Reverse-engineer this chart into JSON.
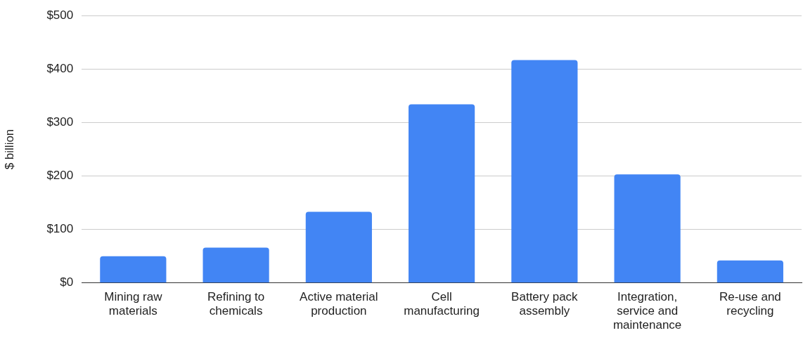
{
  "chart_data": {
    "type": "bar",
    "ylabel": "$ billion",
    "categories": [
      "Mining raw materials",
      "Refining to chemicals",
      "Active material production",
      "Cell manufacturing",
      "Battery pack assembly",
      "Integration, service and maintenance",
      "Re-use and recycling"
    ],
    "values": [
      50,
      66,
      133,
      334,
      417,
      203,
      42
    ],
    "color": "#4285f4",
    "ylim": [
      0,
      500
    ],
    "yticks": [
      {
        "value": 0,
        "label": "$0"
      },
      {
        "value": 100,
        "label": "$100"
      },
      {
        "value": 200,
        "label": "$200"
      },
      {
        "value": 300,
        "label": "$300"
      },
      {
        "value": 400,
        "label": "$400"
      },
      {
        "value": 500,
        "label": "$500"
      }
    ],
    "grid": "y",
    "legend": false
  }
}
